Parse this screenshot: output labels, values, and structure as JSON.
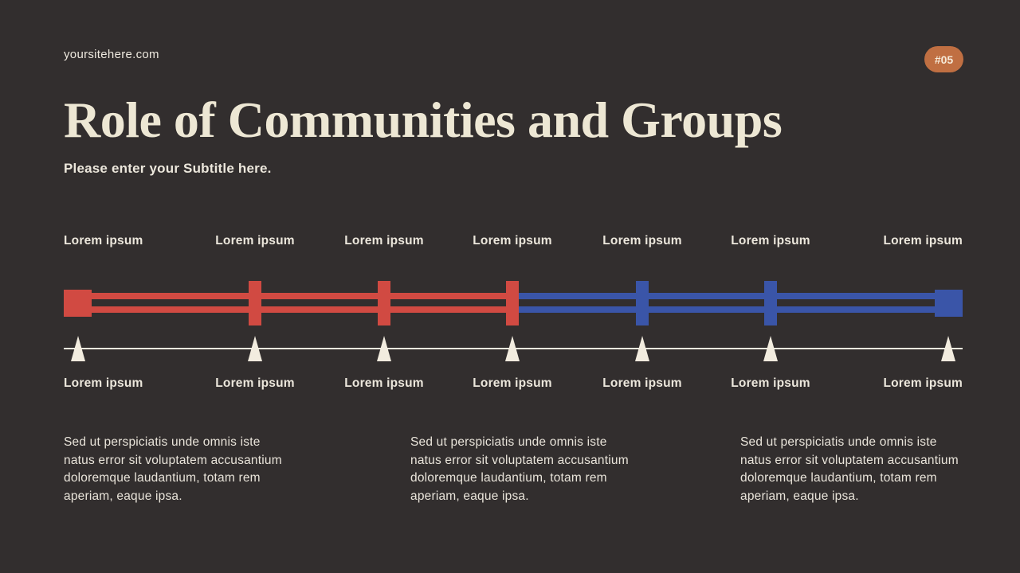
{
  "page": {
    "site_url": "yoursitehere.com",
    "badge": "#05",
    "title": "Role of Communities and Groups",
    "subtitle": "Please enter your Subtitle here."
  },
  "colors": {
    "background": "#322e2e",
    "red": "#d14a42",
    "blue": "#3a55a8",
    "cream": "#f2ecdf",
    "badge": "#c06f42"
  },
  "timeline": {
    "top_labels": [
      "Lorem ipsum",
      "Lorem ipsum",
      "Lorem ipsum",
      "Lorem ipsum",
      "Lorem ipsum",
      "Lorem ipsum",
      "Lorem ipsum"
    ],
    "bottom_labels": [
      "Lorem ipsum",
      "Lorem ipsum",
      "Lorem ipsum",
      "Lorem ipsum",
      "Lorem ipsum",
      "Lorem ipsum",
      "Lorem ipsum"
    ],
    "left_segment_color": "#d14a42",
    "right_segment_color": "#3a55a8",
    "red_positions": 4,
    "blue_positions": 3
  },
  "paragraphs": [
    {
      "text": "Sed ut perspiciatis unde omnis iste\nnatus error sit voluptatem accusantium\ndoloremque laudantium, totam rem\naperiam, eaque ipsa."
    },
    {
      "text": "Sed ut perspiciatis unde omnis iste\nnatus error sit voluptatem accusantium\ndoloremque laudantium, totam rem\naperiam, eaque ipsa."
    },
    {
      "text": "Sed ut perspiciatis unde omnis iste\nnatus error sit voluptatem accusantium\ndoloremque laudantium, totam rem\naperiam, eaque ipsa."
    }
  ]
}
